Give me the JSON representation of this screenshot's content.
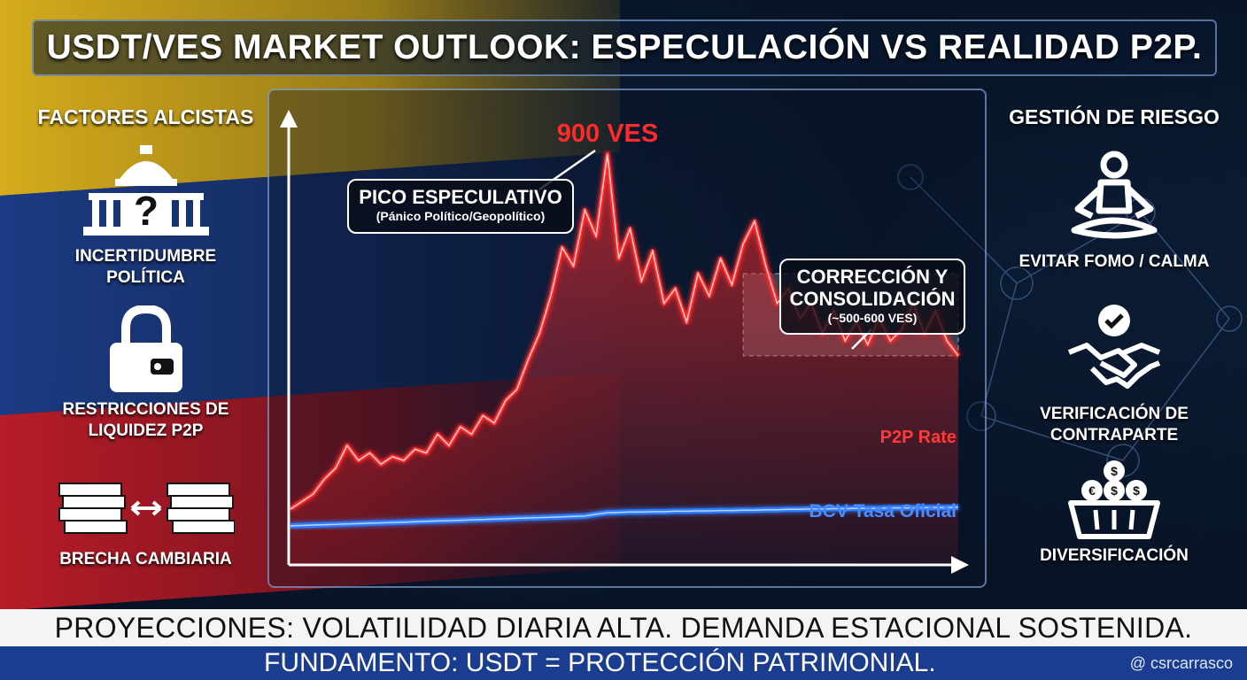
{
  "title": "USDT/VES MARKET OUTLOOK: ESPECULACIÓN VS REALIDAD P2P.",
  "left": {
    "heading": "FACTORES ALCISTAS",
    "items": [
      {
        "icon": "capitol-question-icon",
        "label_lines": [
          "INCERTIDUMBRE",
          "POLÍTICA"
        ]
      },
      {
        "icon": "padlock-wallet-icon",
        "label_lines": [
          "RESTRICCIONES DE",
          "LIQUIDEZ P2P"
        ]
      },
      {
        "icon": "cash-exchange-icon",
        "label_lines": [
          "BRECHA CAMBIARIA"
        ]
      }
    ]
  },
  "right": {
    "heading": "GESTIÓN DE RIESGO",
    "items": [
      {
        "icon": "meditation-icon",
        "label_lines": [
          "EVITAR FOMO / CALMA"
        ]
      },
      {
        "icon": "handshake-check-icon",
        "label_lines": [
          "VERIFICACIÓN DE",
          "CONTRAPARTE"
        ]
      },
      {
        "icon": "money-basket-icon",
        "label_lines": [
          "DIVERSIFICACIÓN"
        ]
      }
    ]
  },
  "chart_data": {
    "type": "line",
    "series": [
      {
        "name": "P2P Rate",
        "color": "#ff2a2a",
        "values": [
          0.05,
          0.07,
          0.09,
          0.13,
          0.16,
          0.22,
          0.18,
          0.2,
          0.17,
          0.19,
          0.18,
          0.21,
          0.2,
          0.25,
          0.22,
          0.27,
          0.25,
          0.3,
          0.28,
          0.34,
          0.37,
          0.45,
          0.52,
          0.62,
          0.75,
          0.7,
          0.85,
          0.78,
          1.0,
          0.72,
          0.8,
          0.66,
          0.74,
          0.6,
          0.64,
          0.55,
          0.68,
          0.62,
          0.72,
          0.65,
          0.76,
          0.82,
          0.7,
          0.6,
          0.64,
          0.56,
          0.6,
          0.52,
          0.58,
          0.5,
          0.55,
          0.49,
          0.56,
          0.5,
          0.53,
          0.6,
          0.52,
          0.58,
          0.5,
          0.46
        ]
      },
      {
        "name": "BCV Tasa Oficial",
        "color": "#2f7bff",
        "values": [
          0.005,
          0.006,
          0.007,
          0.008,
          0.009,
          0.01,
          0.011,
          0.012,
          0.013,
          0.014,
          0.015,
          0.016,
          0.017,
          0.018,
          0.019,
          0.02,
          0.021,
          0.022,
          0.023,
          0.024,
          0.025,
          0.026,
          0.027,
          0.028,
          0.029,
          0.03,
          0.031,
          0.036,
          0.04,
          0.041,
          0.042,
          0.042,
          0.043,
          0.043,
          0.044,
          0.044,
          0.045,
          0.045,
          0.046,
          0.046,
          0.047,
          0.047,
          0.048,
          0.048,
          0.049,
          0.049,
          0.05,
          0.05,
          0.051,
          0.051,
          0.052,
          0.052,
          0.052,
          0.053,
          0.053,
          0.053,
          0.054,
          0.054,
          0.054,
          0.055
        ]
      }
    ],
    "peak_label": "900 VES",
    "band": {
      "from_index": 40,
      "to_index": 59,
      "low": 0.46,
      "high": 0.68
    },
    "annotations": [
      {
        "title": "PICO ESPECULATIVO",
        "subtitle": "(Pánico Político/Geopolítico)"
      },
      {
        "title_lines": [
          "CORRECCIÓN Y",
          "CONSOLIDACIÓN"
        ],
        "subtitle": "(~500-600 VES)"
      }
    ],
    "xlabel": "",
    "ylabel": ""
  },
  "footer": {
    "line1": "PROYECCIONES: VOLATILIDAD DIARIA ALTA. DEMANDA ESTACIONAL SOSTENIDA.",
    "line2": "FUNDAMENTO: USDT = PROTECCIÓN PATRIMONIAL.",
    "handle": "@ csrcarrasco"
  }
}
